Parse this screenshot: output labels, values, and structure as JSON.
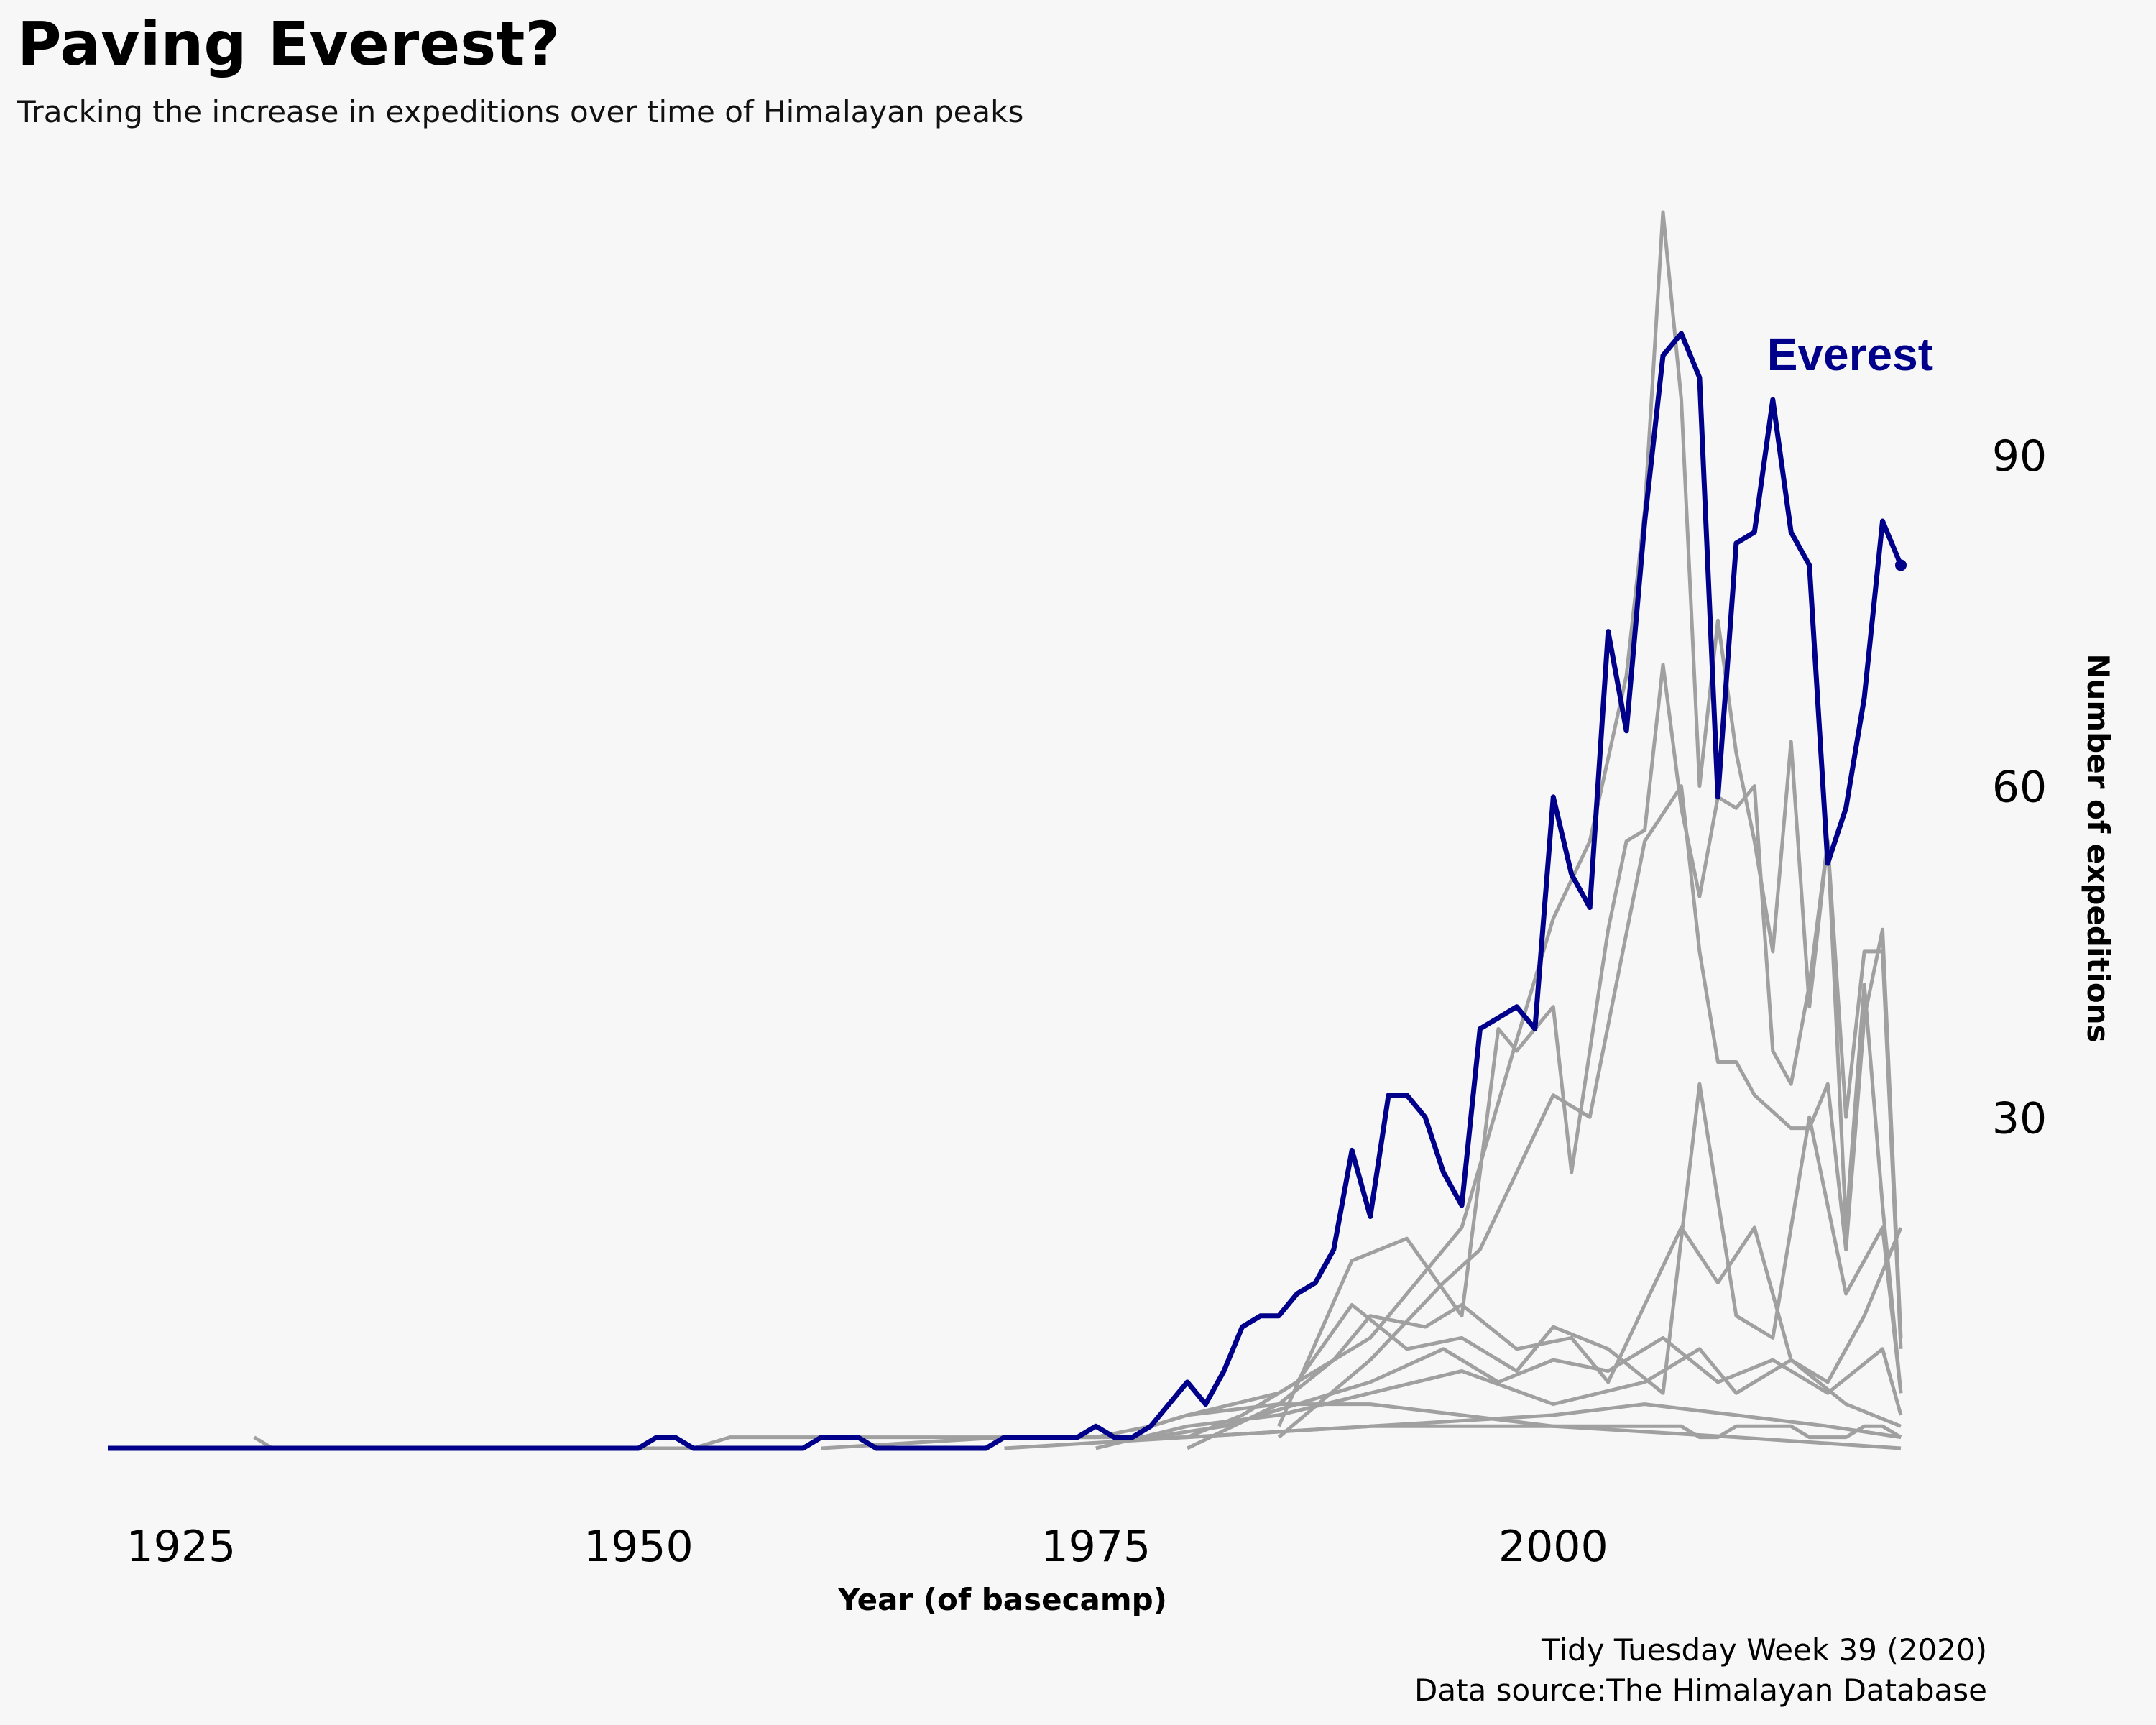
{
  "title": "Paving Everest?",
  "subtitle": "Tracking the increase in expeditions over time of Himalayan peaks",
  "caption_line1": "Tidy Tuesday Week 39 (2020)",
  "caption_line2": "Data source:The Himalayan Database",
  "colors": {
    "background": "#f7f7f7",
    "highlight": "#00008b",
    "other_peaks": "#a0a0a0"
  },
  "chart_data": {
    "type": "line",
    "xlabel": "Year (of basecamp)",
    "ylabel": "Number of expeditions",
    "y_axis_position": "right",
    "xlim": [
      1921,
      2019
    ],
    "ylim": [
      0,
      112
    ],
    "x_ticks": [
      1925,
      1950,
      1975,
      2000
    ],
    "y_ticks": [
      30,
      60,
      90
    ],
    "grid": false,
    "highlight_label": "Everest",
    "highlight_series": {
      "name": "Everest",
      "x": [
        1921,
        1922,
        1923,
        1924,
        1925,
        1926,
        1927,
        1928,
        1929,
        1930,
        1931,
        1932,
        1933,
        1934,
        1935,
        1936,
        1937,
        1938,
        1939,
        1940,
        1941,
        1942,
        1943,
        1944,
        1945,
        1946,
        1947,
        1948,
        1949,
        1950,
        1951,
        1952,
        1953,
        1954,
        1955,
        1956,
        1957,
        1958,
        1959,
        1960,
        1961,
        1962,
        1963,
        1964,
        1965,
        1966,
        1967,
        1968,
        1969,
        1970,
        1971,
        1972,
        1973,
        1974,
        1975,
        1976,
        1977,
        1978,
        1979,
        1980,
        1981,
        1982,
        1983,
        1984,
        1985,
        1986,
        1987,
        1988,
        1989,
        1990,
        1991,
        1992,
        1993,
        1994,
        1995,
        1996,
        1997,
        1998,
        1999,
        2000,
        2001,
        2002,
        2003,
        2004,
        2005,
        2006,
        2007,
        2008,
        2009,
        2010,
        2011,
        2012,
        2013,
        2014,
        2015,
        2016,
        2017,
        2018,
        2019
      ],
      "values": [
        0,
        0,
        0,
        0,
        0,
        0,
        0,
        0,
        0,
        0,
        0,
        0,
        0,
        0,
        0,
        0,
        0,
        0,
        0,
        0,
        0,
        0,
        0,
        0,
        0,
        0,
        0,
        0,
        0,
        0,
        1,
        1,
        0,
        0,
        0,
        0,
        0,
        0,
        0,
        1,
        1,
        1,
        0,
        0,
        0,
        0,
        0,
        0,
        0,
        1,
        1,
        1,
        1,
        1,
        2,
        1,
        1,
        2,
        4,
        6,
        4,
        7,
        11,
        12,
        12,
        14,
        15,
        18,
        27,
        21,
        32,
        32,
        30,
        25,
        22,
        38,
        39,
        40,
        38,
        59,
        52,
        49,
        74,
        65,
        84,
        99,
        101,
        97,
        59,
        82,
        83,
        95,
        83,
        80,
        53,
        58,
        68,
        84,
        80
      ]
    },
    "other_peaks_note": "many other Himalayan peaks, unlabeled",
    "other_series": [
      {
        "x": [
          1929,
          1930,
          1935,
          1945,
          1953,
          1955,
          1960,
          1965,
          1970,
          1975,
          1978,
          1980,
          1985,
          1990,
          1995,
          2000,
          2002,
          2004,
          2005,
          2006,
          2007,
          2008,
          2009,
          2010,
          2011,
          2012,
          2013,
          2014,
          2015,
          2016,
          2017,
          2018,
          2019
        ],
        "values": [
          1,
          0,
          0,
          0,
          0,
          1,
          1,
          1,
          1,
          1,
          2,
          3,
          4,
          4,
          3,
          2,
          2,
          2,
          2,
          2,
          2,
          1,
          1,
          2,
          2,
          2,
          2,
          1,
          1,
          1,
          2,
          2,
          1
        ]
      },
      {
        "x": [
          1978,
          1980,
          1985,
          1990,
          1995,
          1998,
          2000,
          2002,
          2004,
          2005,
          2006,
          2007,
          2008,
          2009,
          2010,
          2011,
          2012,
          2013,
          2014,
          2015,
          2016,
          2017,
          2018,
          2019
        ],
        "values": [
          2,
          3,
          5,
          10,
          20,
          37,
          48,
          55,
          70,
          85,
          112,
          95,
          60,
          75,
          63,
          55,
          45,
          64,
          40,
          55,
          30,
          45,
          45,
          9
        ]
      },
      {
        "x": [
          1985,
          1989,
          1992,
          1995,
          1997,
          1998,
          2000,
          2001,
          2003,
          2004,
          2005,
          2006,
          2007,
          2008,
          2009,
          2010,
          2011,
          2012,
          2013,
          2014,
          2015,
          2016,
          2017,
          2018,
          2019
        ],
        "values": [
          2,
          17,
          19,
          12,
          38,
          36,
          40,
          25,
          47,
          55,
          56,
          71,
          58,
          50,
          59,
          58,
          60,
          36,
          33,
          42,
          55,
          20,
          42,
          22,
          5
        ]
      },
      {
        "x": [
          1985,
          1990,
          1994,
          1996,
          2000,
          2002,
          2005,
          2007,
          2008,
          2009,
          2010,
          2011,
          2013,
          2014,
          2015,
          2016,
          2017,
          2018,
          2019
        ],
        "values": [
          1,
          8,
          15,
          18,
          32,
          30,
          55,
          60,
          45,
          35,
          35,
          32,
          29,
          29,
          33,
          18,
          39,
          47,
          10
        ]
      },
      {
        "x": [
          1980,
          1985,
          1988,
          1990,
          1993,
          1995,
          1998,
          2001,
          2003,
          2005,
          2007,
          2009,
          2011,
          2013,
          2015,
          2017,
          2019
        ],
        "values": [
          0,
          4,
          8,
          12,
          11,
          13,
          9,
          10,
          6,
          13,
          20,
          15,
          20,
          8,
          6,
          12,
          20
        ]
      },
      {
        "x": [
          1980,
          1983,
          1986,
          1989,
          1992,
          1995,
          1998,
          2000,
          2003,
          2006,
          2008,
          2010,
          2012,
          2014,
          2016,
          2018,
          2019
        ],
        "values": [
          1,
          3,
          6,
          13,
          9,
          10,
          7,
          11,
          9,
          5,
          33,
          12,
          10,
          30,
          14,
          20,
          5
        ]
      },
      {
        "x": [
          1978,
          1982,
          1986,
          1990,
          1994,
          1997,
          2000,
          2003,
          2006,
          2009,
          2012,
          2015,
          2018,
          2019
        ],
        "values": [
          1,
          2,
          4,
          6,
          9,
          6,
          8,
          7,
          10,
          6,
          8,
          5,
          9,
          3
        ]
      },
      {
        "x": [
          1975,
          1980,
          1985,
          1990,
          1995,
          2000,
          2005,
          2008,
          2010,
          2013,
          2016,
          2019
        ],
        "values": [
          0,
          2,
          3,
          5,
          7,
          4,
          6,
          9,
          5,
          8,
          4,
          2
        ]
      },
      {
        "x": [
          1970,
          1980,
          1990,
          2000,
          2005,
          2010,
          2015,
          2019
        ],
        "values": [
          0,
          1,
          2,
          3,
          4,
          3,
          2,
          1
        ]
      },
      {
        "x": [
          1960,
          1970,
          1980,
          1990,
          2000,
          2010,
          2019
        ],
        "values": [
          0,
          1,
          1,
          2,
          2,
          1,
          0
        ]
      }
    ]
  }
}
